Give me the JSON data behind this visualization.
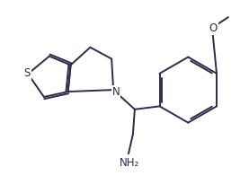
{
  "background_color": "#ffffff",
  "line_color": "#2c2c4a",
  "line_width": 1.4,
  "text_color": "#2c2c4a",
  "label_N": "N",
  "label_S": "S",
  "label_NH2": "NH₂",
  "label_O": "O",
  "figsize": [
    2.77,
    2.15
  ],
  "dpi": 100,
  "font_size": 8.5
}
